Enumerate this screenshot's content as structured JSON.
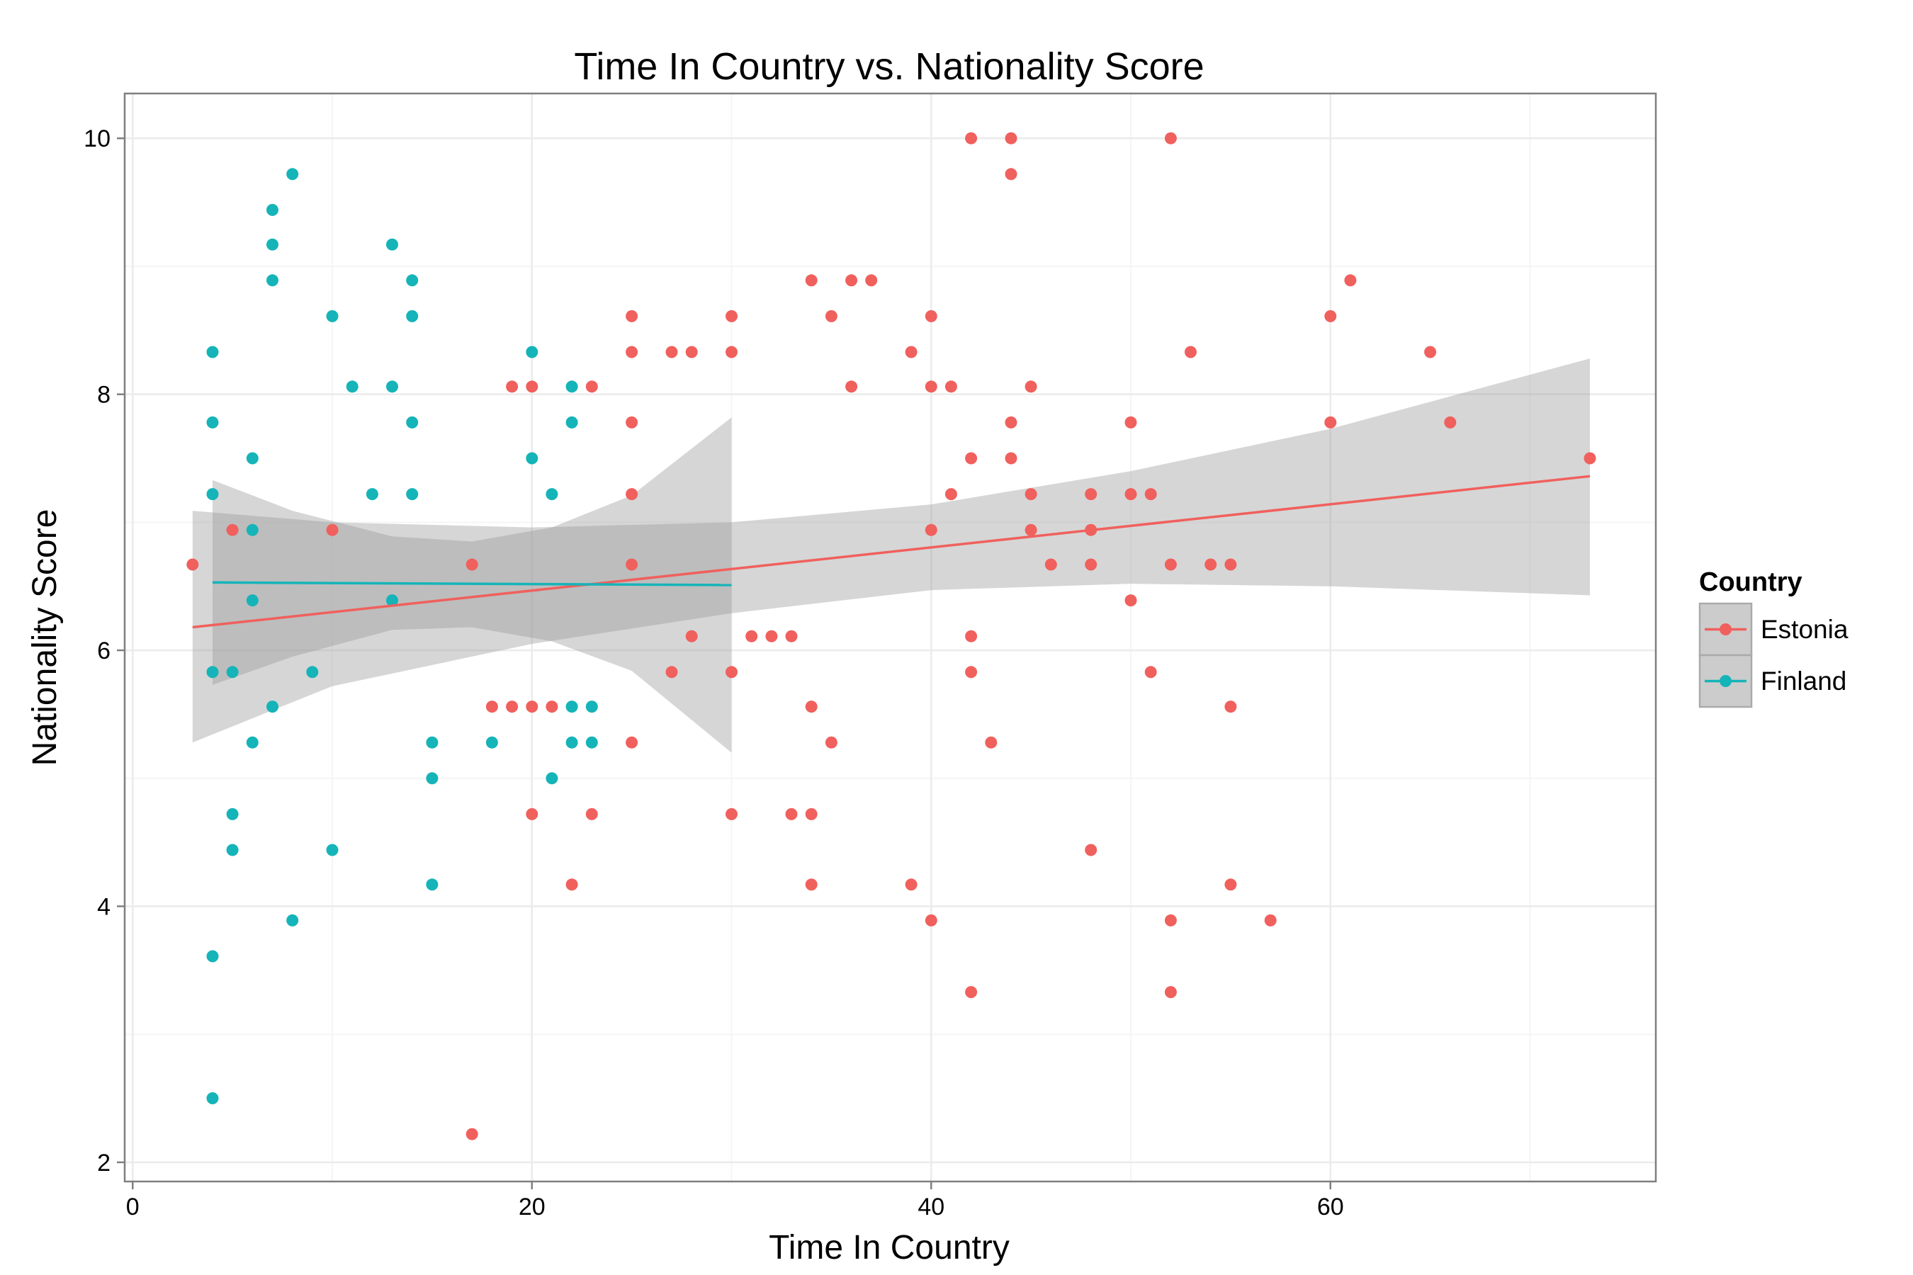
{
  "chart_data": {
    "type": "scatter",
    "title": "Time In Country vs. Nationality Score",
    "xlabel": "Time In Country",
    "ylabel": "Nationality Score",
    "xlim": [
      -0.4,
      76.3
    ],
    "ylim": [
      1.85,
      10.35
    ],
    "x_ticks": [
      0,
      20,
      40,
      60
    ],
    "y_ticks": [
      2,
      4,
      6,
      8,
      10
    ],
    "grid": true,
    "legend": {
      "title": "Country",
      "position": "right",
      "entries": [
        "Estonia",
        "Finland"
      ]
    },
    "colors": {
      "Estonia": "#f0605d",
      "Finland": "#15b4b8",
      "band": "#999999",
      "grid": "#ebebeb",
      "axis": "#7f7f7f"
    },
    "series": [
      {
        "name": "Estonia",
        "points": [
          [
            3,
            6.67
          ],
          [
            5,
            6.94
          ],
          [
            10,
            6.94
          ],
          [
            17,
            6.67
          ],
          [
            17,
            2.22
          ],
          [
            18,
            5.56
          ],
          [
            19,
            5.56
          ],
          [
            19,
            8.06
          ],
          [
            20,
            8.06
          ],
          [
            20,
            5.56
          ],
          [
            20,
            4.72
          ],
          [
            21,
            5.56
          ],
          [
            22,
            4.17
          ],
          [
            23,
            8.06
          ],
          [
            23,
            4.72
          ],
          [
            25,
            8.61
          ],
          [
            25,
            8.33
          ],
          [
            25,
            7.78
          ],
          [
            25,
            7.22
          ],
          [
            25,
            6.67
          ],
          [
            25,
            5.28
          ],
          [
            27,
            8.33
          ],
          [
            27,
            5.83
          ],
          [
            28,
            8.33
          ],
          [
            28,
            6.11
          ],
          [
            30,
            8.61
          ],
          [
            30,
            8.33
          ],
          [
            30,
            5.83
          ],
          [
            30,
            4.72
          ],
          [
            31,
            6.11
          ],
          [
            32,
            6.11
          ],
          [
            33,
            6.11
          ],
          [
            33,
            4.72
          ],
          [
            34,
            8.89
          ],
          [
            34,
            5.56
          ],
          [
            34,
            4.72
          ],
          [
            34,
            4.17
          ],
          [
            35,
            8.61
          ],
          [
            35,
            5.28
          ],
          [
            36,
            8.89
          ],
          [
            36,
            8.06
          ],
          [
            37,
            8.89
          ],
          [
            39,
            8.33
          ],
          [
            39,
            4.17
          ],
          [
            40,
            8.61
          ],
          [
            40,
            8.06
          ],
          [
            40,
            6.94
          ],
          [
            40,
            3.89
          ],
          [
            41,
            8.06
          ],
          [
            41,
            7.22
          ],
          [
            42,
            10.0
          ],
          [
            42,
            7.5
          ],
          [
            42,
            6.11
          ],
          [
            42,
            5.83
          ],
          [
            42,
            3.33
          ],
          [
            43,
            5.28
          ],
          [
            44,
            10.0
          ],
          [
            44,
            9.72
          ],
          [
            44,
            7.78
          ],
          [
            44,
            7.5
          ],
          [
            45,
            8.06
          ],
          [
            45,
            7.22
          ],
          [
            45,
            6.94
          ],
          [
            46,
            6.67
          ],
          [
            48,
            7.22
          ],
          [
            48,
            6.94
          ],
          [
            48,
            6.67
          ],
          [
            48,
            4.44
          ],
          [
            50,
            7.78
          ],
          [
            50,
            7.22
          ],
          [
            50,
            6.39
          ],
          [
            51,
            7.22
          ],
          [
            51,
            5.83
          ],
          [
            52,
            10.0
          ],
          [
            52,
            6.67
          ],
          [
            52,
            3.89
          ],
          [
            52,
            3.33
          ],
          [
            53,
            8.33
          ],
          [
            54,
            6.67
          ],
          [
            55,
            6.67
          ],
          [
            55,
            5.56
          ],
          [
            55,
            4.17
          ],
          [
            57,
            3.89
          ],
          [
            60,
            8.61
          ],
          [
            60,
            7.78
          ],
          [
            61,
            8.89
          ],
          [
            65,
            8.33
          ],
          [
            66,
            7.78
          ],
          [
            73,
            7.5
          ]
        ],
        "fit": {
          "x": [
            3,
            73
          ],
          "y": [
            6.18,
            7.36
          ]
        },
        "ci_band": {
          "x": [
            3,
            10,
            20,
            30,
            40,
            50,
            60,
            73
          ],
          "lower": [
            5.28,
            5.72,
            6.05,
            6.29,
            6.47,
            6.52,
            6.5,
            6.43
          ],
          "upper": [
            7.09,
            7.0,
            6.96,
            7.0,
            7.14,
            7.4,
            7.73,
            8.28
          ]
        }
      },
      {
        "name": "Finland",
        "points": [
          [
            4,
            8.33
          ],
          [
            4,
            7.78
          ],
          [
            4,
            7.22
          ],
          [
            4,
            5.83
          ],
          [
            4,
            3.61
          ],
          [
            4,
            2.5
          ],
          [
            5,
            5.83
          ],
          [
            5,
            4.72
          ],
          [
            5,
            4.44
          ],
          [
            6,
            7.5
          ],
          [
            6,
            6.94
          ],
          [
            6,
            6.39
          ],
          [
            6,
            5.28
          ],
          [
            7,
            9.44
          ],
          [
            7,
            9.17
          ],
          [
            7,
            8.89
          ],
          [
            7,
            5.56
          ],
          [
            8,
            9.72
          ],
          [
            8,
            3.89
          ],
          [
            9,
            5.83
          ],
          [
            10,
            8.61
          ],
          [
            10,
            4.44
          ],
          [
            11,
            8.06
          ],
          [
            12,
            7.22
          ],
          [
            13,
            9.17
          ],
          [
            13,
            8.06
          ],
          [
            13,
            6.39
          ],
          [
            14,
            8.89
          ],
          [
            14,
            8.61
          ],
          [
            14,
            7.78
          ],
          [
            14,
            7.22
          ],
          [
            15,
            5.28
          ],
          [
            15,
            5.0
          ],
          [
            15,
            4.17
          ],
          [
            18,
            5.28
          ],
          [
            20,
            8.33
          ],
          [
            20,
            7.5
          ],
          [
            21,
            7.22
          ],
          [
            21,
            5.0
          ],
          [
            22,
            8.06
          ],
          [
            22,
            7.78
          ],
          [
            22,
            5.56
          ],
          [
            22,
            5.28
          ],
          [
            23,
            5.56
          ],
          [
            23,
            5.28
          ]
        ],
        "fit": {
          "x": [
            4,
            30
          ],
          "y": [
            6.53,
            6.51
          ]
        },
        "ci_band": {
          "x": [
            4,
            8,
            13,
            17,
            21,
            25,
            30
          ],
          "lower": [
            5.73,
            5.95,
            6.16,
            6.18,
            6.07,
            5.84,
            5.2
          ],
          "upper": [
            7.33,
            7.09,
            6.89,
            6.85,
            6.96,
            7.21,
            7.82
          ]
        }
      }
    ]
  }
}
